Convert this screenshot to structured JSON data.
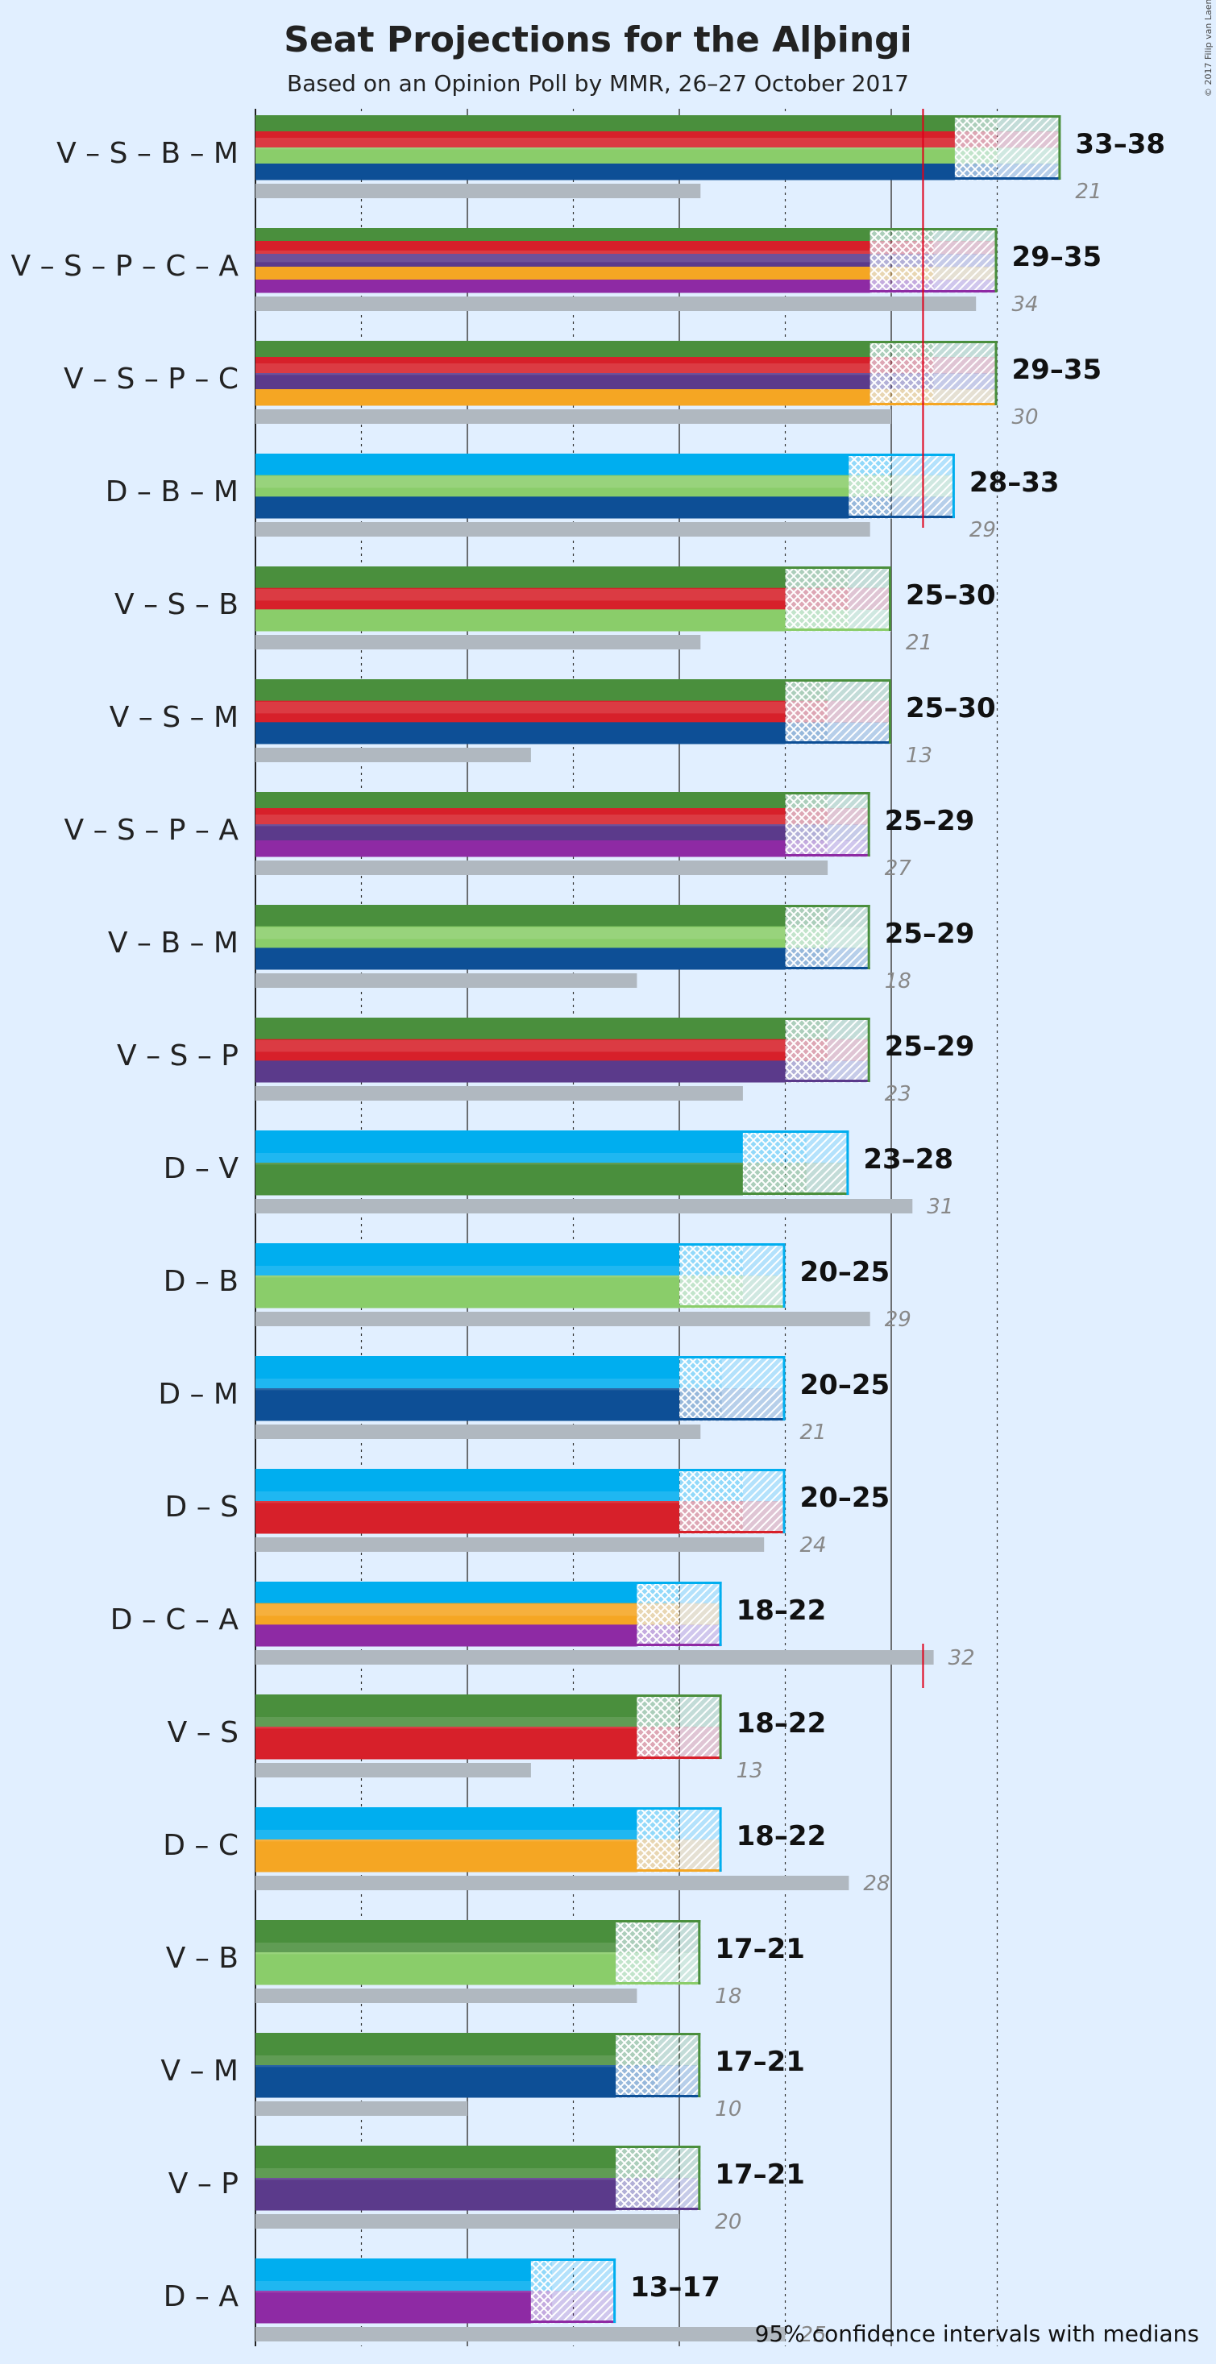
{
  "title": "Seat Projections for the Alþingi",
  "subtitle": "Based on an Opinion Poll by MMR, 26–27 October 2017",
  "legend_text": "95% confidence intervals with medians",
  "copyright": "© 2017 Filip van Laenen",
  "colors": {
    "background": "#e1efff",
    "last_result_bar": "#b0b8c0",
    "majority_line": "#e0001a",
    "V": "#4a8f3d",
    "S": "#d7202a",
    "B": "#8acd6a",
    "M": "#0d4f96",
    "P": "#5b3a8b",
    "C": "#f5a623",
    "A": "#8e2aa4",
    "D": "#00aeef"
  },
  "chart_data": {
    "type": "bar",
    "title": "Seat Projections for the Alþingi",
    "subtitle": "Based on an Opinion Poll by MMR, 26–27 October 2017",
    "xlim": [
      0,
      40
    ],
    "x_gridlines": [
      5,
      10,
      15,
      20,
      25,
      30,
      35
    ],
    "majority_line": 31.5,
    "series_order_note": "parties listed top to bottom in each bar",
    "coalitions": [
      {
        "label": "V – S – B – M",
        "parties": [
          "V",
          "S",
          "B",
          "M"
        ],
        "ci_low": 33,
        "median": 35,
        "ci_high": 38,
        "range_label": "33–38",
        "last_result": 21
      },
      {
        "label": "V – S – P – C – A",
        "parties": [
          "V",
          "S",
          "P",
          "C",
          "A"
        ],
        "ci_low": 29,
        "median": 32,
        "ci_high": 35,
        "range_label": "29–35",
        "last_result": 34
      },
      {
        "label": "V – S – P – C",
        "parties": [
          "V",
          "S",
          "P",
          "C"
        ],
        "ci_low": 29,
        "median": 32,
        "ci_high": 35,
        "range_label": "29–35",
        "last_result": 30
      },
      {
        "label": "D – B – M",
        "parties": [
          "D",
          "B",
          "M"
        ],
        "ci_low": 28,
        "median": 30,
        "ci_high": 33,
        "range_label": "28–33",
        "last_result": 29
      },
      {
        "label": "V – S – B",
        "parties": [
          "V",
          "S",
          "B"
        ],
        "ci_low": 25,
        "median": 28,
        "ci_high": 30,
        "range_label": "25–30",
        "last_result": 21
      },
      {
        "label": "V – S – M",
        "parties": [
          "V",
          "S",
          "M"
        ],
        "ci_low": 25,
        "median": 27,
        "ci_high": 30,
        "range_label": "25–30",
        "last_result": 13
      },
      {
        "label": "V – S – P – A",
        "parties": [
          "V",
          "S",
          "P",
          "A"
        ],
        "ci_low": 25,
        "median": 27,
        "ci_high": 29,
        "range_label": "25–29",
        "last_result": 27
      },
      {
        "label": "V – B – M",
        "parties": [
          "V",
          "B",
          "M"
        ],
        "ci_low": 25,
        "median": 27,
        "ci_high": 29,
        "range_label": "25–29",
        "last_result": 18
      },
      {
        "label": "V – S – P",
        "parties": [
          "V",
          "S",
          "P"
        ],
        "ci_low": 25,
        "median": 27,
        "ci_high": 29,
        "range_label": "25–29",
        "last_result": 23
      },
      {
        "label": "D – V",
        "parties": [
          "D",
          "V"
        ],
        "ci_low": 23,
        "median": 26,
        "ci_high": 28,
        "range_label": "23–28",
        "last_result": 31
      },
      {
        "label": "D – B",
        "parties": [
          "D",
          "B"
        ],
        "ci_low": 20,
        "median": 23,
        "ci_high": 25,
        "range_label": "20–25",
        "last_result": 29
      },
      {
        "label": "D – M",
        "parties": [
          "D",
          "M"
        ],
        "ci_low": 20,
        "median": 22,
        "ci_high": 25,
        "range_label": "20–25",
        "last_result": 21
      },
      {
        "label": "D – S",
        "parties": [
          "D",
          "S"
        ],
        "ci_low": 20,
        "median": 23,
        "ci_high": 25,
        "range_label": "20–25",
        "last_result": 24
      },
      {
        "label": "D – C – A",
        "parties": [
          "D",
          "C",
          "A"
        ],
        "ci_low": 18,
        "median": 20,
        "ci_high": 22,
        "range_label": "18–22",
        "last_result": 32
      },
      {
        "label": "V – S",
        "parties": [
          "V",
          "S"
        ],
        "ci_low": 18,
        "median": 20,
        "ci_high": 22,
        "range_label": "18–22",
        "last_result": 13
      },
      {
        "label": "D – C",
        "parties": [
          "D",
          "C"
        ],
        "ci_low": 18,
        "median": 20,
        "ci_high": 22,
        "range_label": "18–22",
        "last_result": 28
      },
      {
        "label": "V – B",
        "parties": [
          "V",
          "B"
        ],
        "ci_low": 17,
        "median": 19,
        "ci_high": 21,
        "range_label": "17–21",
        "last_result": 18
      },
      {
        "label": "V – M",
        "parties": [
          "V",
          "M"
        ],
        "ci_low": 17,
        "median": 19,
        "ci_high": 21,
        "range_label": "17–21",
        "last_result": 10
      },
      {
        "label": "V – P",
        "parties": [
          "V",
          "P"
        ],
        "ci_low": 17,
        "median": 19,
        "ci_high": 21,
        "range_label": "17–21",
        "last_result": 20
      },
      {
        "label": "D – A",
        "parties": [
          "D",
          "A"
        ],
        "ci_low": 13,
        "median": 14,
        "ci_high": 17,
        "range_label": "13–17",
        "last_result": 25
      }
    ]
  }
}
